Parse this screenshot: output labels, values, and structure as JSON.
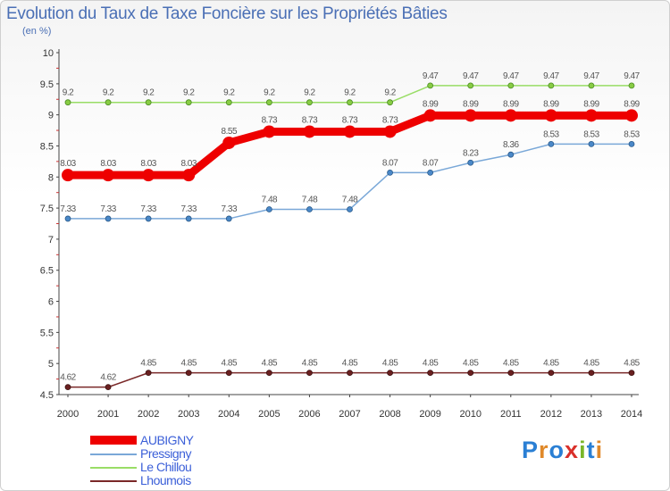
{
  "header": {
    "title": "Evolution du Taux de Taxe Foncière sur les Propriétés Bâties",
    "subtitle": "(en %)"
  },
  "logo": {
    "text": "Proxiti",
    "colors": [
      "#2a7fd4",
      "#e0892a",
      "#2a7fd4",
      "#d9302a",
      "#7ab62a",
      "#2a7fd4",
      "#e0892a"
    ]
  },
  "chart_data": {
    "type": "line",
    "title": "Evolution du Taux de Taxe Foncière sur les Propriétés Bâties",
    "ylabel": "(en %)",
    "xlabel": "",
    "x": [
      "2000",
      "2001",
      "2002",
      "2003",
      "2004",
      "2005",
      "2006",
      "2007",
      "2008",
      "2009",
      "2010",
      "2011",
      "2012",
      "2013",
      "2014"
    ],
    "ylim": [
      4.5,
      10
    ],
    "yticks": [
      "4.5",
      "5",
      "5.5",
      "6",
      "6.5",
      "7",
      "7.5",
      "8",
      "8.5",
      "9",
      "9.5",
      "10"
    ],
    "grid": false,
    "legend_position": "bottom-left",
    "series": [
      {
        "name": "AUBIGNY",
        "color": "#ee0000",
        "values": [
          8.03,
          8.03,
          8.03,
          8.03,
          8.55,
          8.73,
          8.73,
          8.73,
          8.73,
          8.99,
          8.99,
          8.99,
          8.99,
          8.99,
          8.99
        ],
        "labels": [
          "8.03",
          "8.03",
          "8.03",
          "8.03",
          "8.55",
          "8.73",
          "8.73",
          "8.73",
          "8.73",
          "8.99",
          "8.99",
          "8.99",
          "8.99",
          "8.99",
          "8.99"
        ]
      },
      {
        "name": "Pressigny",
        "color": "#7aa8d8",
        "values": [
          7.33,
          7.33,
          7.33,
          7.33,
          7.33,
          7.48,
          7.48,
          7.48,
          8.07,
          8.07,
          8.23,
          8.36,
          8.53,
          8.53,
          8.53
        ],
        "labels": [
          "7.33",
          "7.33",
          "7.33",
          "7.33",
          "7.33",
          "7.48",
          "7.48",
          "7.48",
          "8.07",
          "8.07",
          "8.23",
          "8.36",
          "8.53",
          "8.53",
          "8.53"
        ]
      },
      {
        "name": "Le Chillou",
        "color": "#99dd66",
        "values": [
          9.2,
          9.2,
          9.2,
          9.2,
          9.2,
          9.2,
          9.2,
          9.2,
          9.2,
          9.47,
          9.47,
          9.47,
          9.47,
          9.47,
          9.47
        ],
        "labels": [
          "9.2",
          "9.2",
          "9.2",
          "9.2",
          "9.2",
          "9.2",
          "9.2",
          "9.2",
          "9.2",
          "9.47",
          "9.47",
          "9.47",
          "9.47",
          "9.47",
          "9.47"
        ]
      },
      {
        "name": "Lhoumois",
        "color": "#7a2828",
        "values": [
          4.62,
          4.62,
          4.85,
          4.85,
          4.85,
          4.85,
          4.85,
          4.85,
          4.85,
          4.85,
          4.85,
          4.85,
          4.85,
          4.85,
          4.85
        ],
        "labels": [
          "4.62",
          "4.62",
          "4.85",
          "4.85",
          "4.85",
          "4.85",
          "4.85",
          "4.85",
          "4.85",
          "4.85",
          "4.85",
          "4.85",
          "4.85",
          "4.85",
          "4.85"
        ]
      }
    ]
  }
}
